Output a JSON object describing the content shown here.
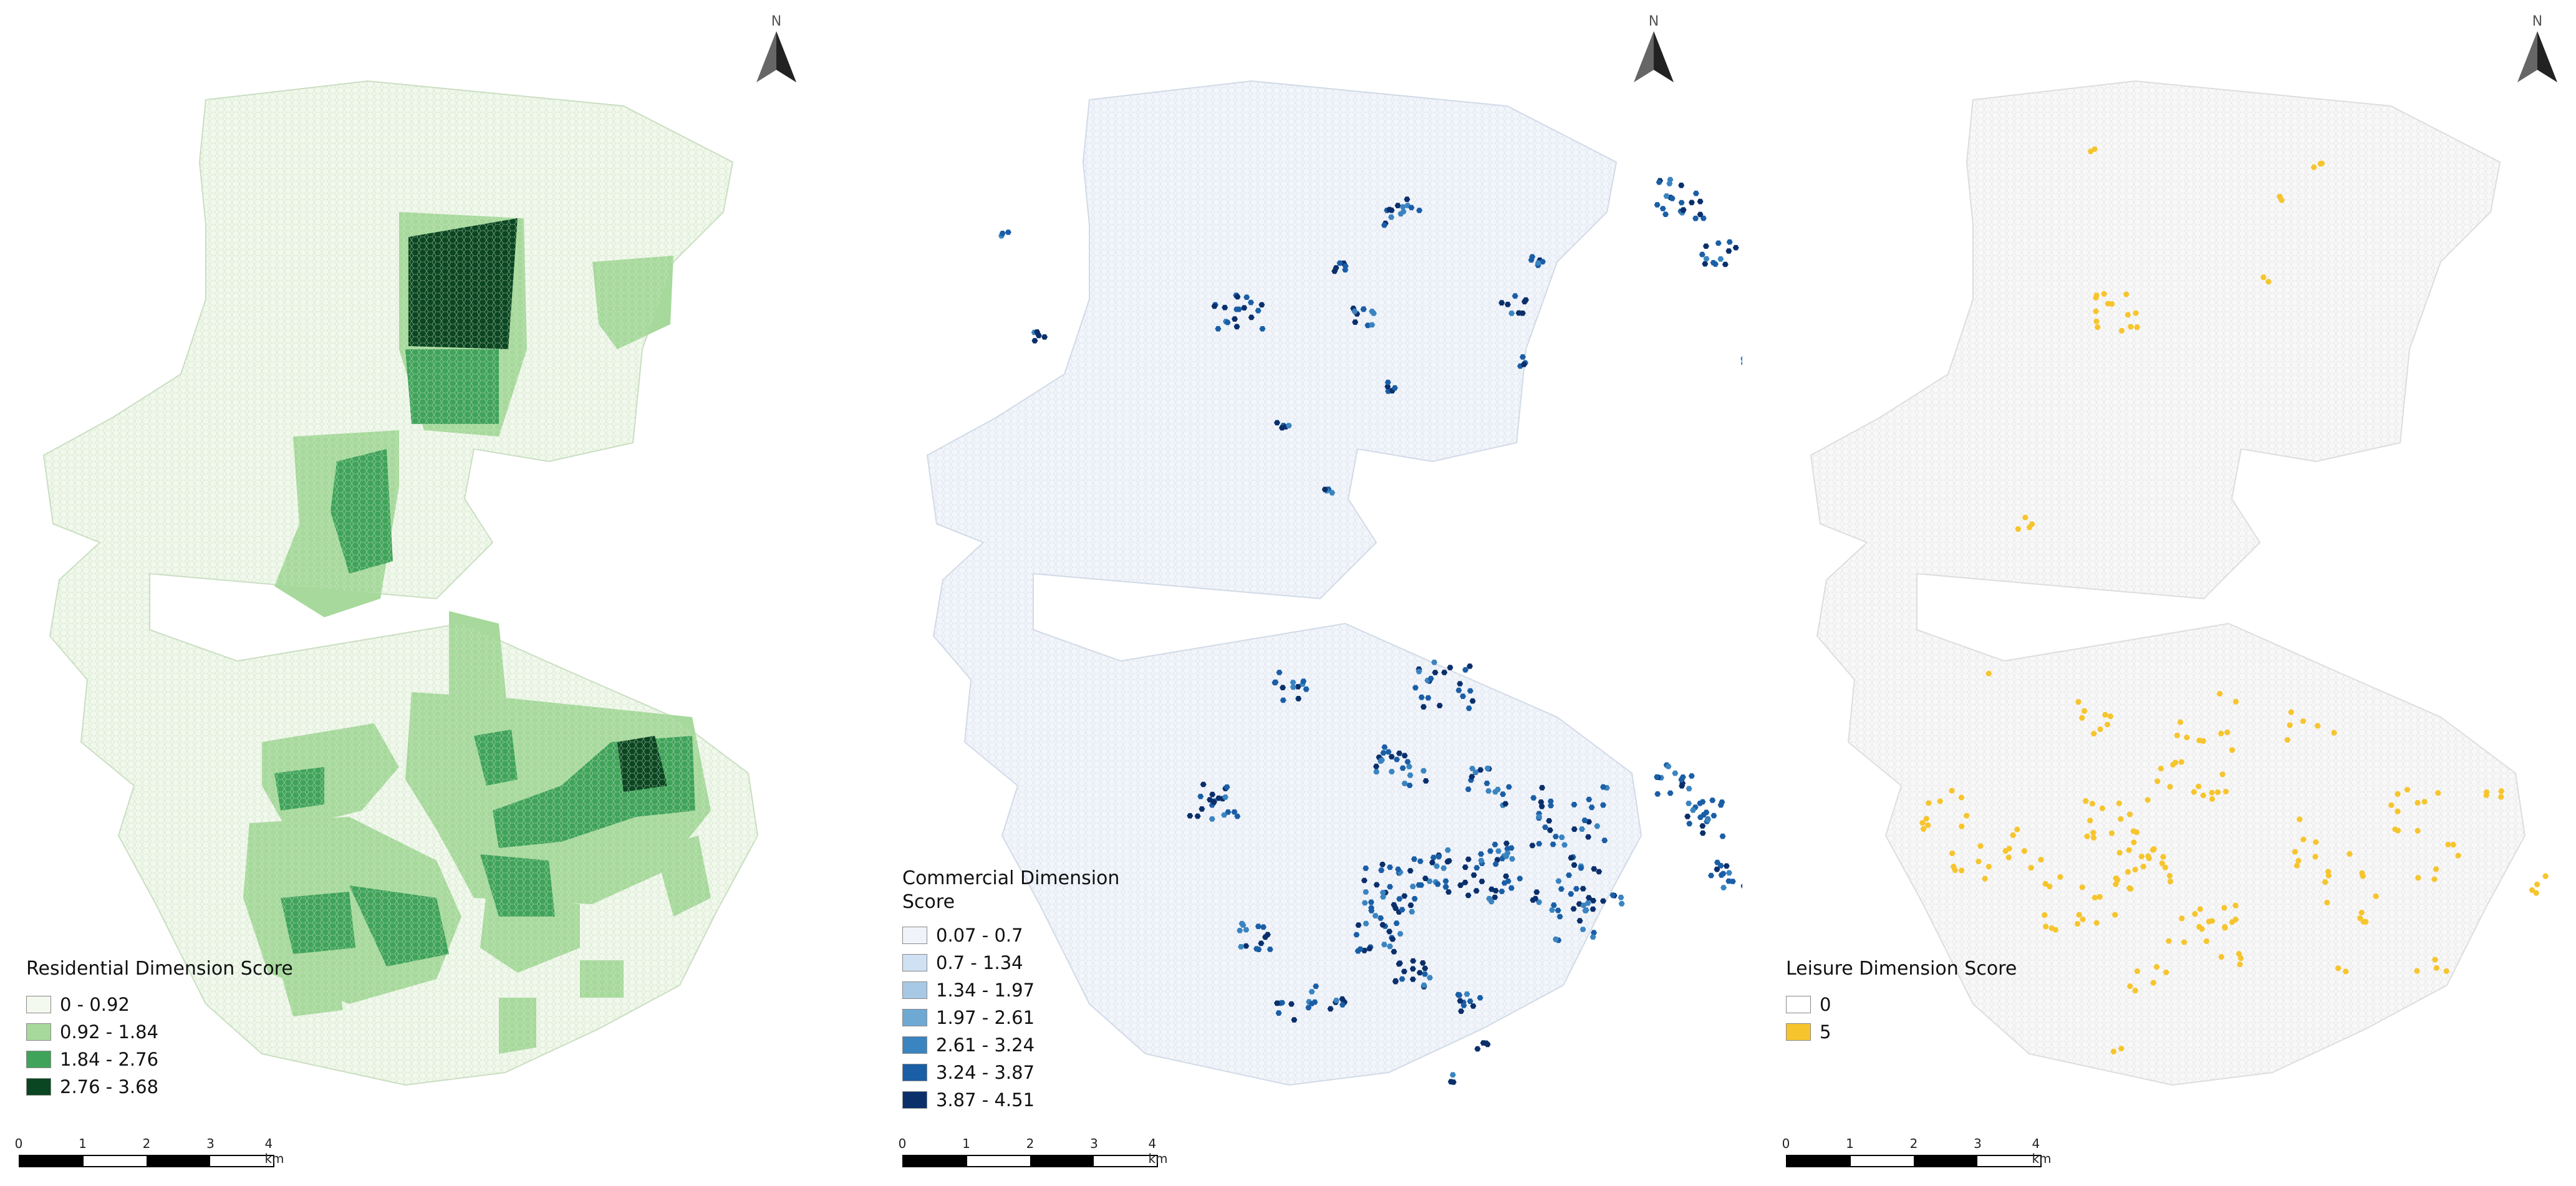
{
  "panels": [
    {
      "id": "residential",
      "legend_title": "Residential Dimension Score",
      "base_color": "#eef6e8",
      "classes": [
        {
          "label": "0 - 0.92",
          "color": "#f3f9ee"
        },
        {
          "label": "0.92 - 1.84",
          "color": "#a6d99b"
        },
        {
          "label": "1.84 - 2.76",
          "color": "#3fa35a"
        },
        {
          "label": "2.76 - 3.68",
          "color": "#0a4621"
        }
      ]
    },
    {
      "id": "commercial",
      "legend_title": "Commercial Dimension Score",
      "base_color": "#eef2f8",
      "classes": [
        {
          "label": "0.07 - 0.7",
          "color": "#f0f4fa"
        },
        {
          "label": "0.7 - 1.34",
          "color": "#cfe1f2"
        },
        {
          "label": "1.34 - 1.97",
          "color": "#a7c9e5"
        },
        {
          "label": "1.97 - 2.61",
          "color": "#6ea9d4"
        },
        {
          "label": "2.61 - 3.24",
          "color": "#3a84c0"
        },
        {
          "label": "3.24 - 3.87",
          "color": "#1a5ea6"
        },
        {
          "label": "3.87 - 4.51",
          "color": "#0a2f6b"
        }
      ]
    },
    {
      "id": "leisure",
      "legend_title": "Leisure Dimension Score",
      "base_color": "#f6f6f6",
      "classes": [
        {
          "label": "0",
          "color": "#ffffff"
        },
        {
          "label": "5",
          "color": "#f6c52d"
        }
      ]
    }
  ],
  "north_label": "N",
  "scale": {
    "ticks": [
      "0",
      "1",
      "2",
      "3",
      "4 km"
    ],
    "colors": [
      "#000000",
      "#ffffff",
      "#000000",
      "#ffffff"
    ]
  }
}
